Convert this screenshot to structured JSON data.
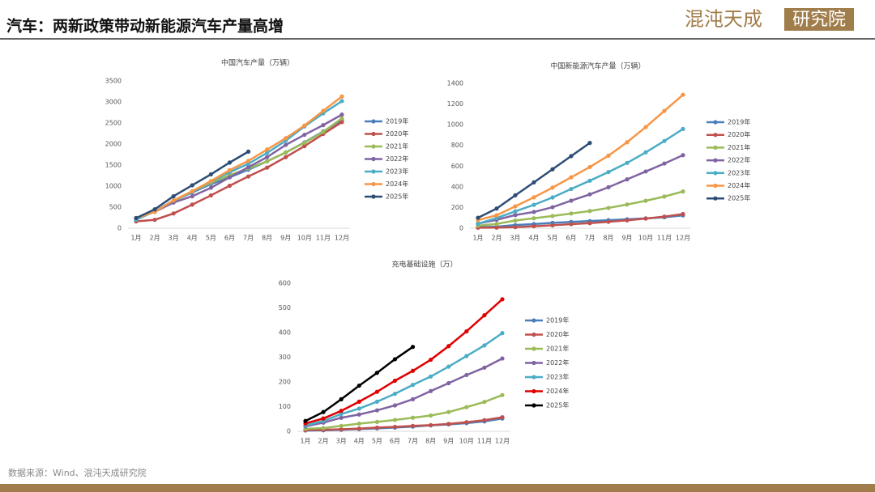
{
  "header": {
    "title": "汽车：两新政策带动新能源汽车产量高增",
    "logo_main": "混沌天成",
    "logo_box": "研究院"
  },
  "footer": {
    "source": "数据来源：Wind、混沌天成研究院"
  },
  "chart_data": [
    {
      "type": "line",
      "title": "中国汽车产量（万辆）",
      "grid": false,
      "categories": [
        "1月",
        "2月",
        "3月",
        "4月",
        "5月",
        "6月",
        "7月",
        "8月",
        "9月",
        "10月",
        "11月",
        "12月"
      ],
      "ylim": [
        0,
        3500
      ],
      "yticks": [
        0,
        500,
        1000,
        1500,
        2000,
        2500,
        3000,
        3500
      ],
      "series": [
        {
          "name": "2019年",
          "color": "#4a7ebb",
          "values": [
            240,
            390,
            650,
            850,
            1050,
            1210,
            1390,
            1590,
            1800,
            2040,
            2300,
            2570
          ]
        },
        {
          "name": "2020年",
          "color": "#c0504d",
          "values": [
            160,
            200,
            350,
            560,
            780,
            1010,
            1230,
            1440,
            1690,
            1950,
            2240,
            2520
          ]
        },
        {
          "name": "2021年",
          "color": "#9bbb59",
          "values": [
            240,
            400,
            640,
            870,
            1080,
            1260,
            1420,
            1590,
            1800,
            2030,
            2290,
            2610
          ]
        },
        {
          "name": "2022年",
          "color": "#8064a2",
          "values": [
            240,
            390,
            610,
            760,
            960,
            1210,
            1450,
            1690,
            1980,
            2220,
            2450,
            2700
          ]
        },
        {
          "name": "2023年",
          "color": "#4bacc6",
          "values": [
            200,
            400,
            660,
            870,
            1110,
            1330,
            1530,
            1790,
            2080,
            2420,
            2730,
            3020
          ]
        },
        {
          "name": "2024年",
          "color": "#f79646",
          "values": [
            240,
            390,
            660,
            880,
            1120,
            1380,
            1600,
            1870,
            2140,
            2440,
            2790,
            3130
          ]
        },
        {
          "name": "2025年",
          "color": "#2c4d75",
          "values": [
            240,
            450,
            760,
            1020,
            1280,
            1560,
            1820,
            null,
            null,
            null,
            null,
            null
          ]
        }
      ]
    },
    {
      "type": "line",
      "title": "中国新能源汽车产量（万辆）",
      "grid": false,
      "categories": [
        "1月",
        "2月",
        "3月",
        "4月",
        "5月",
        "6月",
        "7月",
        "8月",
        "9月",
        "10月",
        "11月",
        "12月"
      ],
      "ylim": [
        0,
        1400
      ],
      "yticks": [
        0,
        200,
        400,
        600,
        800,
        1000,
        1200,
        1400
      ],
      "series": [
        {
          "name": "2019年",
          "color": "#4a7ebb",
          "values": [
            9,
            15,
            30,
            40,
            52,
            61,
            69,
            77,
            86,
            95,
            106,
            124
          ]
        },
        {
          "name": "2020年",
          "color": "#c0504d",
          "values": [
            5,
            6,
            10,
            19,
            28,
            39,
            49,
            62,
            76,
            93,
            112,
            137
          ]
        },
        {
          "name": "2021年",
          "color": "#9bbb59",
          "values": [
            24,
            41,
            74,
            96,
            118,
            142,
            166,
            196,
            229,
            265,
            306,
            355
          ]
        },
        {
          "name": "2022年",
          "color": "#8064a2",
          "values": [
            45,
            81,
            127,
            157,
            203,
            266,
            327,
            396,
            472,
            548,
            625,
            706
          ]
        },
        {
          "name": "2023年",
          "color": "#4bacc6",
          "values": [
            43,
            98,
            163,
            226,
            297,
            379,
            459,
            543,
            631,
            733,
            843,
            959
          ]
        },
        {
          "name": "2024年",
          "color": "#f79646",
          "values": [
            79,
            125,
            211,
            298,
            392,
            492,
            591,
            701,
            831,
            977,
            1134,
            1289
          ]
        },
        {
          "name": "2025年",
          "color": "#2c4d75",
          "values": [
            101,
            190,
            318,
            443,
            570,
            697,
            824,
            null,
            null,
            null,
            null,
            null
          ]
        }
      ]
    },
    {
      "type": "line",
      "title": "充电基础设施（万）",
      "grid": false,
      "categories": [
        "1月",
        "2月",
        "3月",
        "4月",
        "5月",
        "6月",
        "7月",
        "8月",
        "9月",
        "10月",
        "11月",
        "12月"
      ],
      "ylim": [
        0,
        600
      ],
      "yticks": [
        0,
        100,
        200,
        300,
        400,
        500,
        600
      ],
      "series": [
        {
          "name": "2019年",
          "color": "#4a7ebb",
          "values": [
            3,
            4,
            6,
            9,
            12,
            15,
            19,
            24,
            28,
            33,
            40,
            52
          ]
        },
        {
          "name": "2020年",
          "color": "#c0504d",
          "values": [
            5,
            6,
            8,
            11,
            15,
            18,
            22,
            25,
            30,
            37,
            45,
            57
          ]
        },
        {
          "name": "2021年",
          "color": "#9bbb59",
          "values": [
            10,
            13,
            22,
            31,
            38,
            46,
            55,
            64,
            78,
            98,
            119,
            147
          ]
        },
        {
          "name": "2022年",
          "color": "#8064a2",
          "values": [
            20,
            35,
            55,
            68,
            85,
            105,
            130,
            163,
            195,
            228,
            258,
            295
          ]
        },
        {
          "name": "2023年",
          "color": "#4bacc6",
          "values": [
            24,
            42,
            70,
            92,
            120,
            152,
            188,
            222,
            262,
            305,
            348,
            398
          ]
        },
        {
          "name": "2024年",
          "color": "#e00000",
          "values": [
            32,
            52,
            83,
            120,
            160,
            205,
            245,
            290,
            345,
            405,
            470,
            535
          ]
        },
        {
          "name": "2025年",
          "color": "#000000",
          "values": [
            42,
            78,
            130,
            185,
            237,
            292,
            342,
            null,
            null,
            null,
            null,
            null
          ]
        }
      ]
    }
  ]
}
